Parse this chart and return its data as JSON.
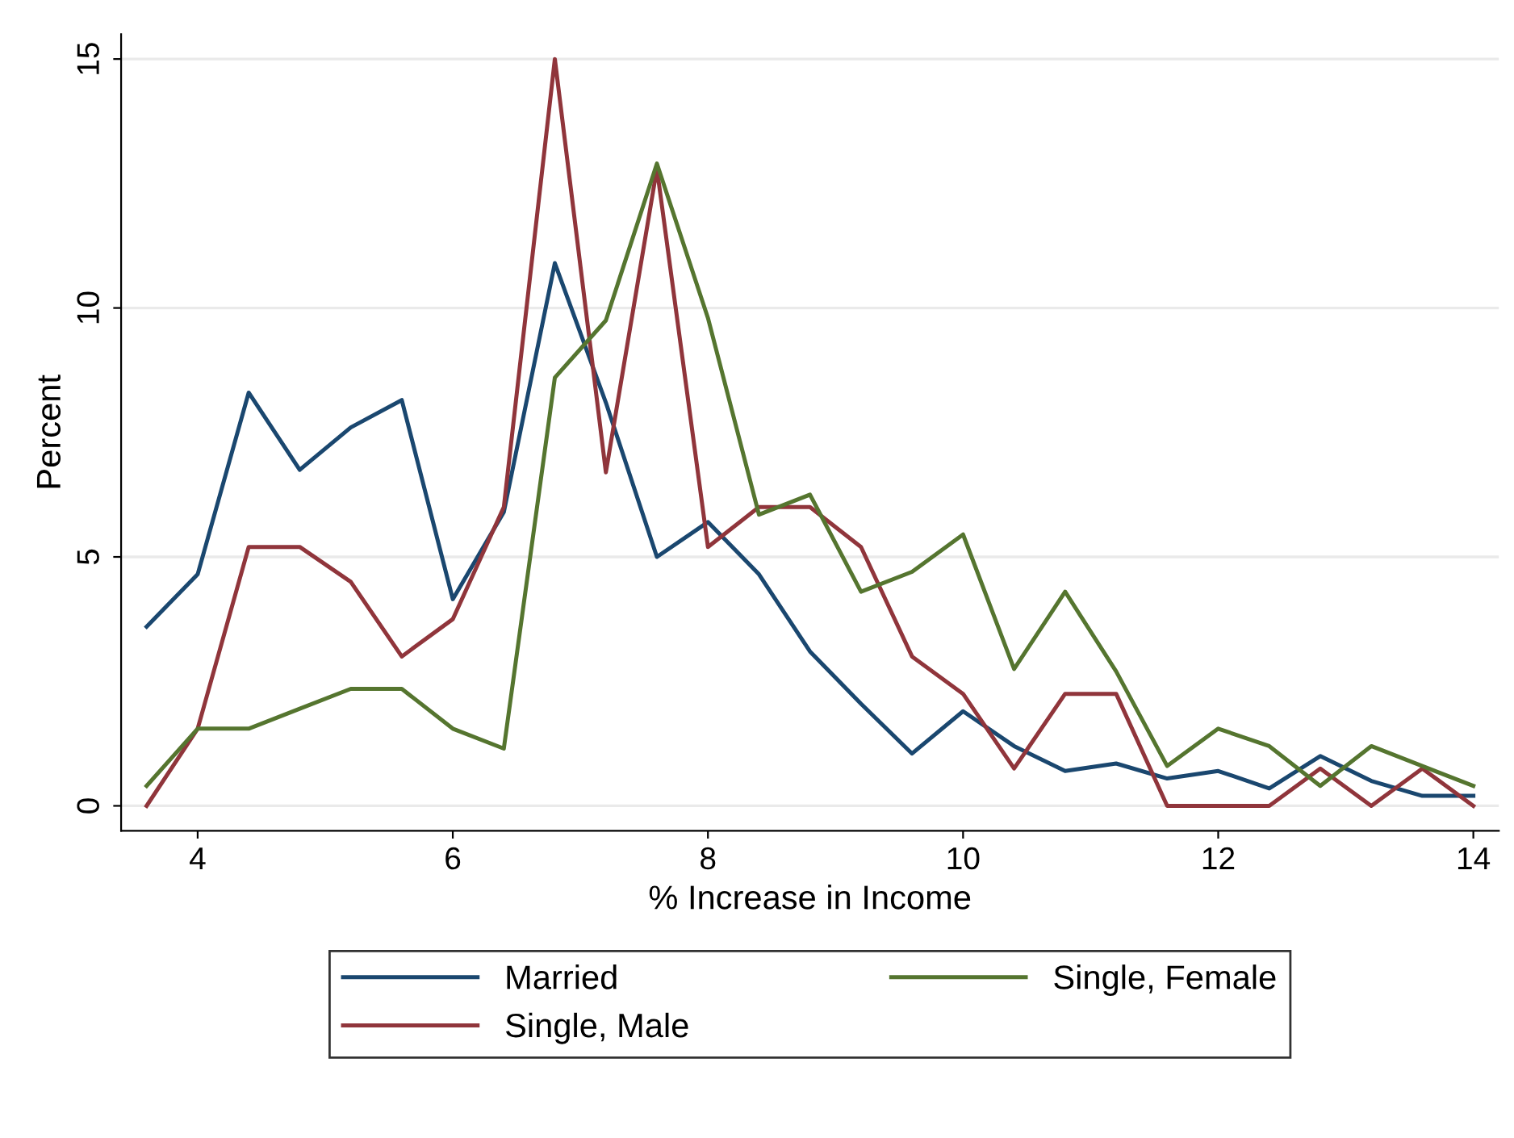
{
  "chart_data": {
    "type": "line",
    "xlabel": "% Increase in Income",
    "ylabel": "Percent",
    "x": [
      3.6,
      4.0,
      4.4,
      4.8,
      5.2,
      5.6,
      6.0,
      6.4,
      6.8,
      7.2,
      7.6,
      8.0,
      8.4,
      8.8,
      9.2,
      9.6,
      10.0,
      10.4,
      10.8,
      11.2,
      11.6,
      12.0,
      12.4,
      12.8,
      13.2,
      13.6,
      14.0
    ],
    "series": [
      {
        "name": "Married",
        "color": "#1a476f",
        "values": [
          3.6,
          4.65,
          8.3,
          6.75,
          7.6,
          8.15,
          4.15,
          5.9,
          10.9,
          8.1,
          5.0,
          5.7,
          4.65,
          3.1,
          2.05,
          1.05,
          1.9,
          1.2,
          0.7,
          0.85,
          0.55,
          0.7,
          0.35,
          1.0,
          0.5,
          0.2,
          0.2
        ]
      },
      {
        "name": "Single, Male",
        "color": "#90353b",
        "values": [
          0,
          1.55,
          5.2,
          5.2,
          4.5,
          3.0,
          3.75,
          6.0,
          15.0,
          6.7,
          12.8,
          5.2,
          6.0,
          6.0,
          5.2,
          3.0,
          2.25,
          0.75,
          2.25,
          2.25,
          0,
          0,
          0,
          0.75,
          0,
          0.75,
          0
        ]
      },
      {
        "name": "Single, Female",
        "color": "#55752f",
        "values": [
          0.4,
          1.55,
          1.55,
          1.95,
          2.35,
          2.35,
          1.55,
          1.15,
          8.6,
          9.75,
          12.9,
          9.8,
          5.85,
          6.25,
          4.3,
          4.7,
          5.45,
          2.75,
          4.3,
          2.7,
          0.8,
          1.55,
          1.2,
          0.4,
          1.2,
          0.8,
          0.4
        ]
      }
    ],
    "xlim": [
      3.4,
      14.2
    ],
    "xticks": [
      4,
      6,
      8,
      10,
      12,
      14
    ],
    "ylim": [
      -0.5,
      15.5
    ],
    "yticks": [
      0,
      5,
      10,
      15
    ],
    "grid": "y",
    "legend": "bottom",
    "marker": "none",
    "line_style": "solid"
  }
}
